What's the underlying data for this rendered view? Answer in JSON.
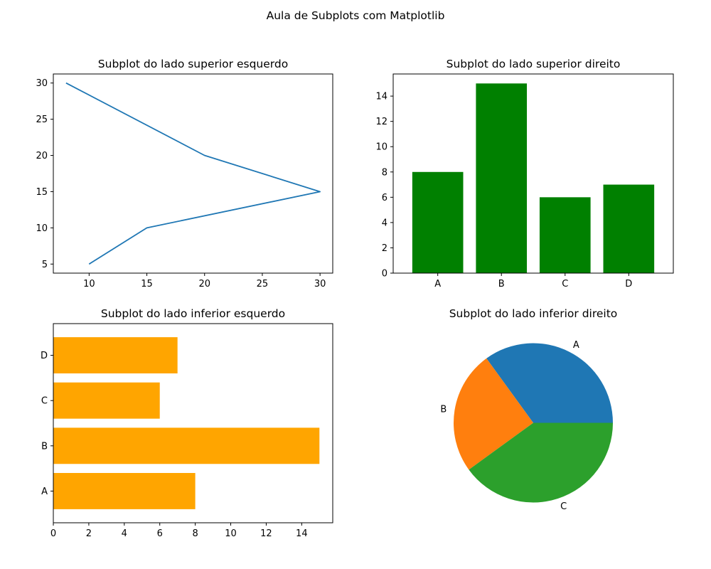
{
  "figure": {
    "suptitle": "Aula de Subplots com Matplotlib"
  },
  "chart_data": [
    {
      "type": "line",
      "title": "Subplot do lado superior esquerdo",
      "x": [
        10,
        15,
        30,
        20,
        8
      ],
      "y": [
        5,
        10,
        15,
        20,
        30
      ],
      "xlim": [
        6.9,
        31.1
      ],
      "ylim": [
        3.75,
        31.25
      ],
      "xticks": [
        10,
        15,
        20,
        25,
        30
      ],
      "yticks": [
        5,
        10,
        15,
        20,
        25,
        30
      ],
      "color": "#1f77b4",
      "grid": false
    },
    {
      "type": "bar",
      "title": "Subplot do lado superior direito",
      "categories": [
        "A",
        "B",
        "C",
        "D"
      ],
      "values": [
        8,
        15,
        6,
        7
      ],
      "ylim": [
        0,
        15.75
      ],
      "yticks": [
        0,
        2,
        4,
        6,
        8,
        10,
        12,
        14
      ],
      "color": "#008000",
      "grid": false
    },
    {
      "type": "bar",
      "orientation": "horizontal",
      "title": "Subplot do lado inferior esquerdo",
      "categories": [
        "A",
        "B",
        "C",
        "D"
      ],
      "values": [
        8,
        15,
        6,
        7
      ],
      "xlim": [
        0,
        15.75
      ],
      "xticks": [
        0,
        2,
        4,
        6,
        8,
        10,
        12,
        14
      ],
      "color": "#ffa500",
      "grid": false
    },
    {
      "type": "pie",
      "title": "Subplot do lado inferior direito",
      "labels": [
        "A",
        "B",
        "C"
      ],
      "values": [
        35,
        25,
        40
      ],
      "colors": [
        "#1f77b4",
        "#ff7f0e",
        "#2ca02c"
      ],
      "startangle": 0
    }
  ]
}
